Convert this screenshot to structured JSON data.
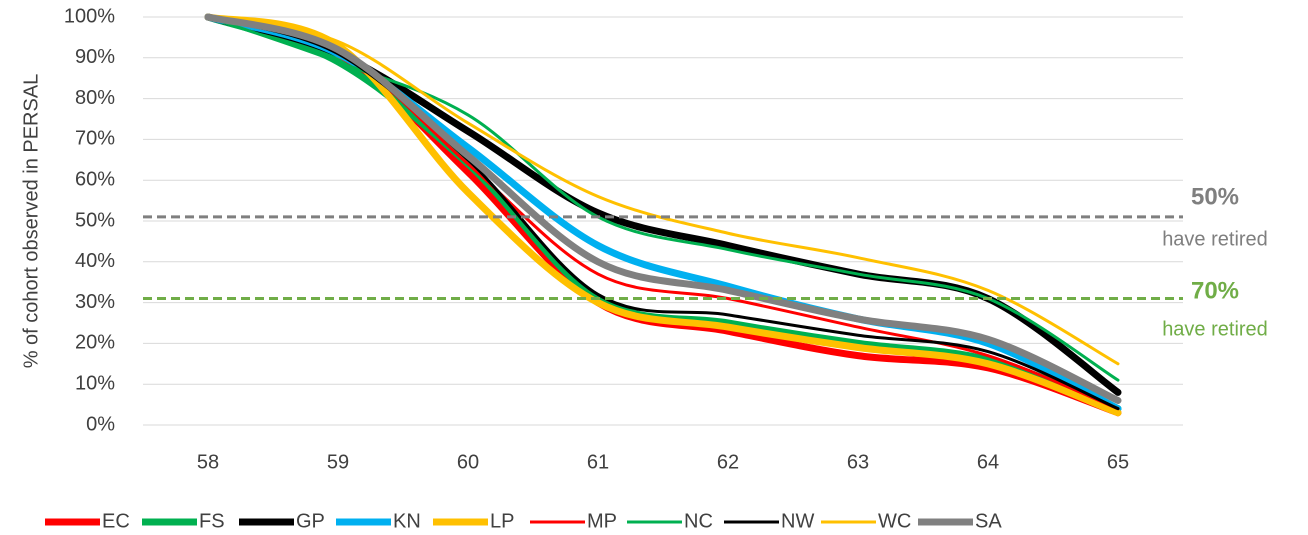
{
  "chart_data": {
    "type": "line",
    "y_label": "% of cohort observed in PERSAL",
    "categories": [
      "58",
      "59",
      "60",
      "61",
      "62",
      "63",
      "64",
      "65"
    ],
    "ylim": [
      0,
      100
    ],
    "yticks": [
      {
        "value": 0,
        "label": "0%"
      },
      {
        "value": 10,
        "label": "10%"
      },
      {
        "value": 20,
        "label": "20%"
      },
      {
        "value": 30,
        "label": "30%"
      },
      {
        "value": 40,
        "label": "40%"
      },
      {
        "value": 50,
        "label": "50%"
      },
      {
        "value": 60,
        "label": "60%"
      },
      {
        "value": 70,
        "label": "70%"
      },
      {
        "value": 80,
        "label": "80%"
      },
      {
        "value": 90,
        "label": "90%"
      },
      {
        "value": 100,
        "label": "100%"
      }
    ],
    "grid": true,
    "legend": "bottom",
    "series": [
      {
        "name": "EC",
        "color": "#ff0000",
        "width": 7,
        "values": [
          100,
          91,
          62,
          30,
          23,
          17,
          14,
          3
        ]
      },
      {
        "name": "FS",
        "color": "#00b050",
        "width": 7,
        "values": [
          100,
          89,
          64,
          31,
          25,
          20,
          16,
          4
        ]
      },
      {
        "name": "GP",
        "color": "#000000",
        "width": 7,
        "values": [
          100,
          91,
          72,
          52,
          44,
          37,
          31,
          8
        ]
      },
      {
        "name": "KN",
        "color": "#00b0f0",
        "width": 7,
        "values": [
          100,
          91,
          68,
          44,
          34,
          26,
          20,
          4
        ]
      },
      {
        "name": "LP",
        "color": "#ffc000",
        "width": 7,
        "values": [
          100,
          93,
          57,
          30,
          24,
          19,
          15,
          3
        ]
      },
      {
        "name": "MP",
        "color": "#ff0000",
        "width": 3,
        "values": [
          100,
          92,
          64,
          37,
          31,
          24,
          17,
          4
        ]
      },
      {
        "name": "NC",
        "color": "#00b050",
        "width": 3,
        "values": [
          100,
          89,
          76,
          51,
          43,
          37,
          31,
          11
        ]
      },
      {
        "name": "NW",
        "color": "#000000",
        "width": 3,
        "values": [
          100,
          91,
          65,
          32,
          27,
          22,
          18,
          4
        ]
      },
      {
        "name": "WC",
        "color": "#ffc000",
        "width": 3,
        "values": [
          100,
          94,
          74,
          56,
          47,
          41,
          33,
          15
        ]
      },
      {
        "name": "SA",
        "color": "#808080",
        "width": 7,
        "values": [
          100,
          92,
          66,
          40,
          33,
          26,
          21,
          6
        ]
      }
    ],
    "reference_lines": [
      {
        "value": 51,
        "color": "#7f7f7f",
        "label": "50%",
        "note": "have retired"
      },
      {
        "value": 31,
        "color": "#70ad47",
        "label": "70%",
        "note": "have retired"
      }
    ]
  }
}
